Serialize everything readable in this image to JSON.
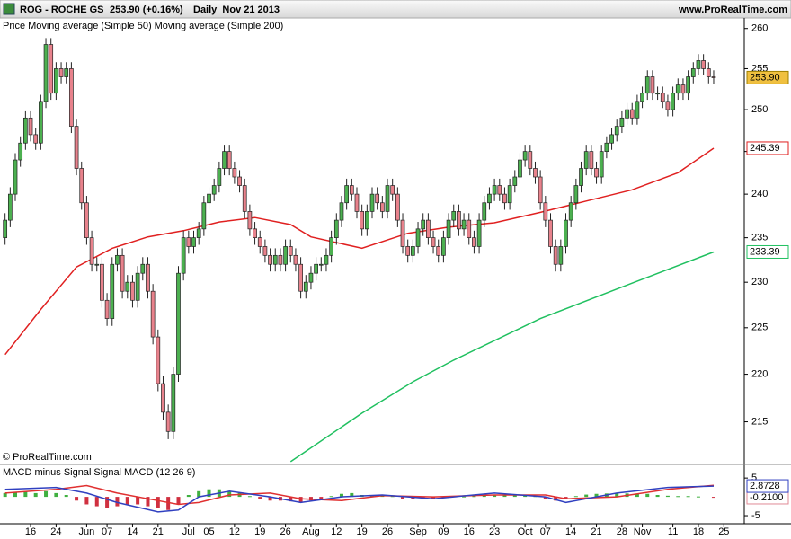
{
  "chart_data": [
    {
      "type": "candlestick",
      "title": "ROG - ROCHE GS",
      "quote": "253.90 (+0.16%)",
      "period": "Daily  Nov 21 2013",
      "source": "www.ProRealTime.com",
      "copyright": "© ProRealTime.com",
      "legend_prefix": "Price",
      "log_scale": true,
      "xlim": [
        -1,
        145
      ],
      "ylim": [
        210.8,
        261.1
      ],
      "yticks": [
        215,
        220,
        225,
        230,
        235,
        240,
        245,
        250,
        255,
        260
      ],
      "up_color": "#4cb050",
      "down_color": "#e8828c",
      "open": [
        235,
        237,
        240,
        244,
        246,
        249,
        247,
        246,
        251,
        258,
        252,
        255,
        254,
        255,
        248,
        243,
        239,
        235,
        232,
        232,
        228,
        226,
        232,
        233,
        229,
        230,
        228,
        231,
        232,
        229,
        224,
        219,
        216,
        214,
        220,
        231,
        235,
        234,
        235,
        236,
        239,
        240,
        241,
        243,
        245,
        243,
        242,
        241,
        238,
        236,
        235,
        234,
        233,
        232,
        233,
        232,
        234,
        233,
        232,
        229,
        230,
        231,
        232,
        232,
        233,
        235,
        237,
        239,
        241,
        240,
        238,
        236,
        238,
        240,
        239,
        238,
        241,
        240,
        237,
        234,
        233,
        234,
        236,
        237,
        235,
        234,
        233,
        235,
        237,
        238,
        236,
        237,
        235,
        234,
        237,
        239,
        240,
        241,
        240,
        239,
        241,
        242,
        244,
        245,
        243,
        242,
        239,
        237,
        234,
        232,
        234,
        237,
        239,
        241,
        243,
        245,
        243,
        242,
        245,
        246,
        247,
        248,
        249,
        250,
        249,
        251,
        252,
        254,
        252,
        252,
        251,
        250,
        252,
        253,
        252,
        254,
        255,
        256,
        255,
        254
      ],
      "high": [
        237.8,
        240.8,
        244.8,
        246.8,
        249.8,
        249.8,
        247.8,
        251.8,
        258.8,
        258.8,
        255.8,
        255.8,
        255.8,
        255.8,
        248.8,
        243.8,
        239.8,
        235.8,
        232.8,
        232.8,
        228.8,
        232.8,
        233.8,
        233.8,
        230.8,
        230.8,
        231.8,
        232.8,
        232.8,
        229.8,
        224.8,
        219.8,
        216.8,
        220.8,
        231.8,
        235.8,
        235.8,
        235.8,
        236.8,
        239.8,
        240.8,
        241.8,
        243.8,
        245.8,
        245.8,
        243.8,
        242.8,
        241.8,
        238.8,
        236.8,
        235.8,
        234.8,
        233.8,
        233.8,
        233.8,
        234.8,
        234.8,
        233.8,
        232.8,
        230.8,
        231.8,
        232.8,
        232.8,
        233.8,
        235.8,
        237.8,
        239.8,
        241.8,
        241.8,
        240.8,
        238.8,
        238.8,
        240.8,
        240.8,
        239.8,
        241.8,
        241.8,
        240.8,
        237.8,
        234.8,
        234.8,
        236.8,
        237.8,
        237.8,
        235.8,
        234.8,
        235.8,
        237.8,
        238.8,
        238.8,
        237.8,
        237.8,
        235.8,
        237.8,
        239.8,
        240.8,
        241.8,
        241.8,
        240.8,
        241.8,
        242.8,
        244.8,
        245.8,
        245.8,
        243.8,
        242.8,
        239.8,
        237.8,
        234.8,
        234.8,
        237.8,
        239.8,
        241.8,
        243.8,
        245.8,
        245.8,
        243.8,
        245.8,
        246.8,
        247.8,
        248.8,
        249.8,
        250.8,
        250.8,
        251.8,
        252.8,
        254.8,
        254.8,
        252.8,
        252.8,
        251.8,
        252.8,
        253.8,
        253.8,
        254.8,
        255.8,
        256.8,
        256.8,
        255.8,
        254.8
      ],
      "low": [
        234.2,
        236.2,
        239.2,
        243.2,
        245.2,
        246.2,
        245.2,
        245.2,
        250.2,
        251.2,
        251.2,
        253.2,
        253.2,
        247.2,
        242.2,
        238.2,
        234.2,
        231.2,
        231.2,
        227.2,
        225.2,
        225.2,
        231.2,
        228.2,
        228.2,
        227.2,
        227.2,
        230.2,
        228.2,
        223.2,
        218.2,
        215.2,
        213.2,
        213.2,
        219.2,
        230.2,
        233.2,
        233.2,
        234.2,
        235.2,
        238.2,
        239.2,
        240.2,
        242.2,
        242.2,
        241.2,
        240.2,
        237.2,
        235.2,
        234.2,
        233.2,
        232.2,
        231.2,
        231.2,
        231.2,
        231.2,
        232.2,
        231.2,
        228.2,
        228.2,
        229.2,
        230.2,
        231.2,
        231.2,
        232.2,
        234.2,
        236.2,
        238.2,
        239.2,
        237.2,
        235.2,
        235.2,
        237.2,
        238.2,
        237.2,
        237.2,
        239.2,
        236.2,
        233.2,
        232.2,
        232.2,
        233.2,
        235.2,
        234.2,
        233.2,
        232.2,
        232.2,
        234.2,
        236.2,
        235.2,
        235.2,
        234.2,
        233.2,
        233.2,
        236.2,
        238.2,
        239.2,
        239.2,
        238.2,
        238.2,
        240.2,
        241.2,
        243.2,
        242.2,
        241.2,
        238.2,
        236.2,
        233.2,
        231.2,
        231.2,
        233.2,
        236.2,
        238.2,
        240.2,
        242.2,
        242.2,
        241.2,
        241.2,
        244.2,
        245.2,
        246.2,
        247.2,
        248.2,
        248.2,
        248.2,
        250.2,
        251.2,
        251.2,
        251.2,
        250.2,
        249.2,
        249.2,
        251.2,
        251.2,
        251.2,
        253.2,
        254.2,
        254.2,
        253.2,
        253.1
      ],
      "close": [
        237,
        240,
        244,
        246,
        249,
        247,
        246,
        251,
        258,
        252,
        255,
        254,
        255,
        248,
        243,
        239,
        235,
        232,
        232,
        228,
        226,
        232,
        233,
        229,
        230,
        228,
        231,
        232,
        229,
        224,
        219,
        216,
        214,
        220,
        231,
        235,
        234,
        235,
        236,
        239,
        240,
        241,
        243,
        245,
        243,
        242,
        241,
        238,
        236,
        235,
        234,
        233,
        232,
        233,
        232,
        234,
        233,
        232,
        229,
        230,
        231,
        232,
        232,
        233,
        235,
        237,
        239,
        241,
        240,
        238,
        236,
        238,
        240,
        239,
        238,
        241,
        240,
        237,
        234,
        233,
        234,
        236,
        237,
        235,
        234,
        233,
        235,
        237,
        238,
        236,
        237,
        235,
        234,
        237,
        239,
        240,
        241,
        240,
        239,
        241,
        242,
        244,
        245,
        243,
        242,
        239,
        237,
        234,
        232,
        234,
        237,
        239,
        241,
        243,
        245,
        243,
        242,
        245,
        246,
        247,
        248,
        249,
        250,
        249,
        251,
        252,
        254,
        252,
        252,
        251,
        250,
        252,
        253,
        252,
        254,
        255,
        256,
        255,
        254,
        253.9
      ],
      "price_tag": {
        "value": 253.9,
        "label": "253.90"
      },
      "series": [
        {
          "name": "Moving average (Simple 50)",
          "color": "#e02020",
          "x": [
            0,
            7,
            14,
            21,
            28,
            35,
            42,
            49,
            56,
            60,
            70,
            79,
            87,
            96,
            105,
            114,
            123,
            132,
            139
          ],
          "values": [
            222.1,
            227,
            231.7,
            233.8,
            235.1,
            235.8,
            236.8,
            237.3,
            236.5,
            235.1,
            233.8,
            235.5,
            236.2,
            236.7,
            237.9,
            239.2,
            240.5,
            242.5,
            245.39
          ],
          "tag": {
            "value": 245.39,
            "label": "245.39"
          }
        },
        {
          "name": "Moving average (Simple 200)",
          "color": "#20c060",
          "x": [
            56,
            70,
            80,
            88,
            105,
            123,
            139
          ],
          "values": [
            210.9,
            215.9,
            219.2,
            221.5,
            226,
            229.9,
            233.39
          ],
          "tag": {
            "value": 233.39,
            "label": "233.39"
          }
        }
      ]
    },
    {
      "type": "combo",
      "xlim": [
        -1,
        145
      ],
      "ylim": [
        -6.9,
        7.9
      ],
      "yticks": [
        5,
        -5
      ],
      "xticks": [
        {
          "value": 5,
          "label": "16"
        },
        {
          "value": 10,
          "label": "24"
        },
        {
          "value": 16,
          "label": "Jun"
        },
        {
          "value": 20,
          "label": "07"
        },
        {
          "value": 25,
          "label": "14"
        },
        {
          "value": 30,
          "label": "21"
        },
        {
          "value": 36,
          "label": "Jul"
        },
        {
          "value": 40,
          "label": "05"
        },
        {
          "value": 45,
          "label": "12"
        },
        {
          "value": 50,
          "label": "19"
        },
        {
          "value": 55,
          "label": "26"
        },
        {
          "value": 60,
          "label": "Aug"
        },
        {
          "value": 65,
          "label": "12"
        },
        {
          "value": 70,
          "label": "19"
        },
        {
          "value": 75,
          "label": "26"
        },
        {
          "value": 81,
          "label": "Sep"
        },
        {
          "value": 86,
          "label": "09"
        },
        {
          "value": 91,
          "label": "16"
        },
        {
          "value": 96,
          "label": "23"
        },
        {
          "value": 102,
          "label": "Oct"
        },
        {
          "value": 106,
          "label": "07"
        },
        {
          "value": 111,
          "label": "14"
        },
        {
          "value": 116,
          "label": "21"
        },
        {
          "value": 121,
          "label": "28"
        },
        {
          "value": 125,
          "label": "Nov"
        },
        {
          "value": 131,
          "label": "11"
        },
        {
          "value": 136,
          "label": "18"
        },
        {
          "value": 141,
          "label": "25"
        }
      ],
      "series": [
        {
          "name": "MACD minus Signal",
          "kind": "bar",
          "color": "#e08a96",
          "up_color": "#40b040",
          "down_color": "#d03040",
          "x": [
            0,
            2,
            4,
            6,
            8,
            10,
            12,
            14,
            16,
            18,
            20,
            22,
            24,
            26,
            28,
            30,
            32,
            34,
            36,
            38,
            40,
            42,
            44,
            46,
            48,
            50,
            52,
            54,
            56,
            58,
            60,
            62,
            64,
            66,
            68,
            70,
            72,
            74,
            76,
            78,
            80,
            82,
            84,
            86,
            88,
            90,
            92,
            94,
            96,
            98,
            100,
            102,
            104,
            106,
            108,
            110,
            112,
            114,
            116,
            118,
            120,
            122,
            124,
            126,
            128,
            130,
            132,
            134,
            136,
            139
          ],
          "values": [
            1.0,
            1.2,
            1.5,
            1.0,
            1.5,
            1.0,
            0.5,
            -1.0,
            -2.0,
            -2.5,
            -3.0,
            -2.5,
            -2.0,
            -2.0,
            -2.5,
            -3.0,
            -3.5,
            -2.0,
            0.5,
            1.5,
            2.0,
            2.0,
            1.5,
            1.0,
            0.2,
            -0.5,
            -1.0,
            -1.0,
            -1.2,
            -1.5,
            -1.0,
            -0.5,
            0.2,
            0.8,
            1.0,
            0.5,
            0.5,
            0.3,
            0.2,
            -0.5,
            -0.6,
            -0.3,
            -0.4,
            -0.2,
            0.2,
            0.1,
            0.2,
            0.5,
            0.6,
            0.5,
            0.5,
            0.6,
            0.2,
            -0.5,
            -1.0,
            -0.6,
            0.2,
            0.6,
            0.8,
            0.9,
            1.0,
            0.9,
            0.8,
            0.8,
            0.5,
            0.3,
            0.2,
            0.2,
            0.1,
            -0.21
          ],
          "tag": {
            "value": -0.21,
            "label": "-0.2100"
          }
        },
        {
          "name": "Signal",
          "kind": "line",
          "color": "#e03030",
          "x": [
            0,
            10,
            16,
            22,
            30,
            34,
            38,
            44,
            52,
            58,
            66,
            74,
            84,
            96,
            106,
            110,
            120,
            130,
            139
          ],
          "values": [
            1,
            2,
            3,
            1,
            -1,
            -2,
            -1.5,
            0.5,
            1,
            -0.5,
            -1,
            0.3,
            0,
            0.5,
            0.5,
            -0.5,
            0,
            2,
            3.0828
          ]
        },
        {
          "name": "MACD (12 26 9)",
          "kind": "line",
          "color": "#3040c0",
          "x": [
            0,
            10,
            16,
            22,
            30,
            34,
            38,
            44,
            52,
            58,
            66,
            74,
            84,
            96,
            106,
            110,
            120,
            130,
            139
          ],
          "values": [
            2,
            2.5,
            1,
            -1.5,
            -4,
            -3.5,
            0,
            1.5,
            0,
            -1.5,
            0,
            0.5,
            -0.5,
            1,
            0,
            -1.5,
            1,
            2.5,
            2.8728
          ],
          "tag": {
            "value": 2.8728,
            "label": "2.8728"
          }
        }
      ]
    }
  ]
}
